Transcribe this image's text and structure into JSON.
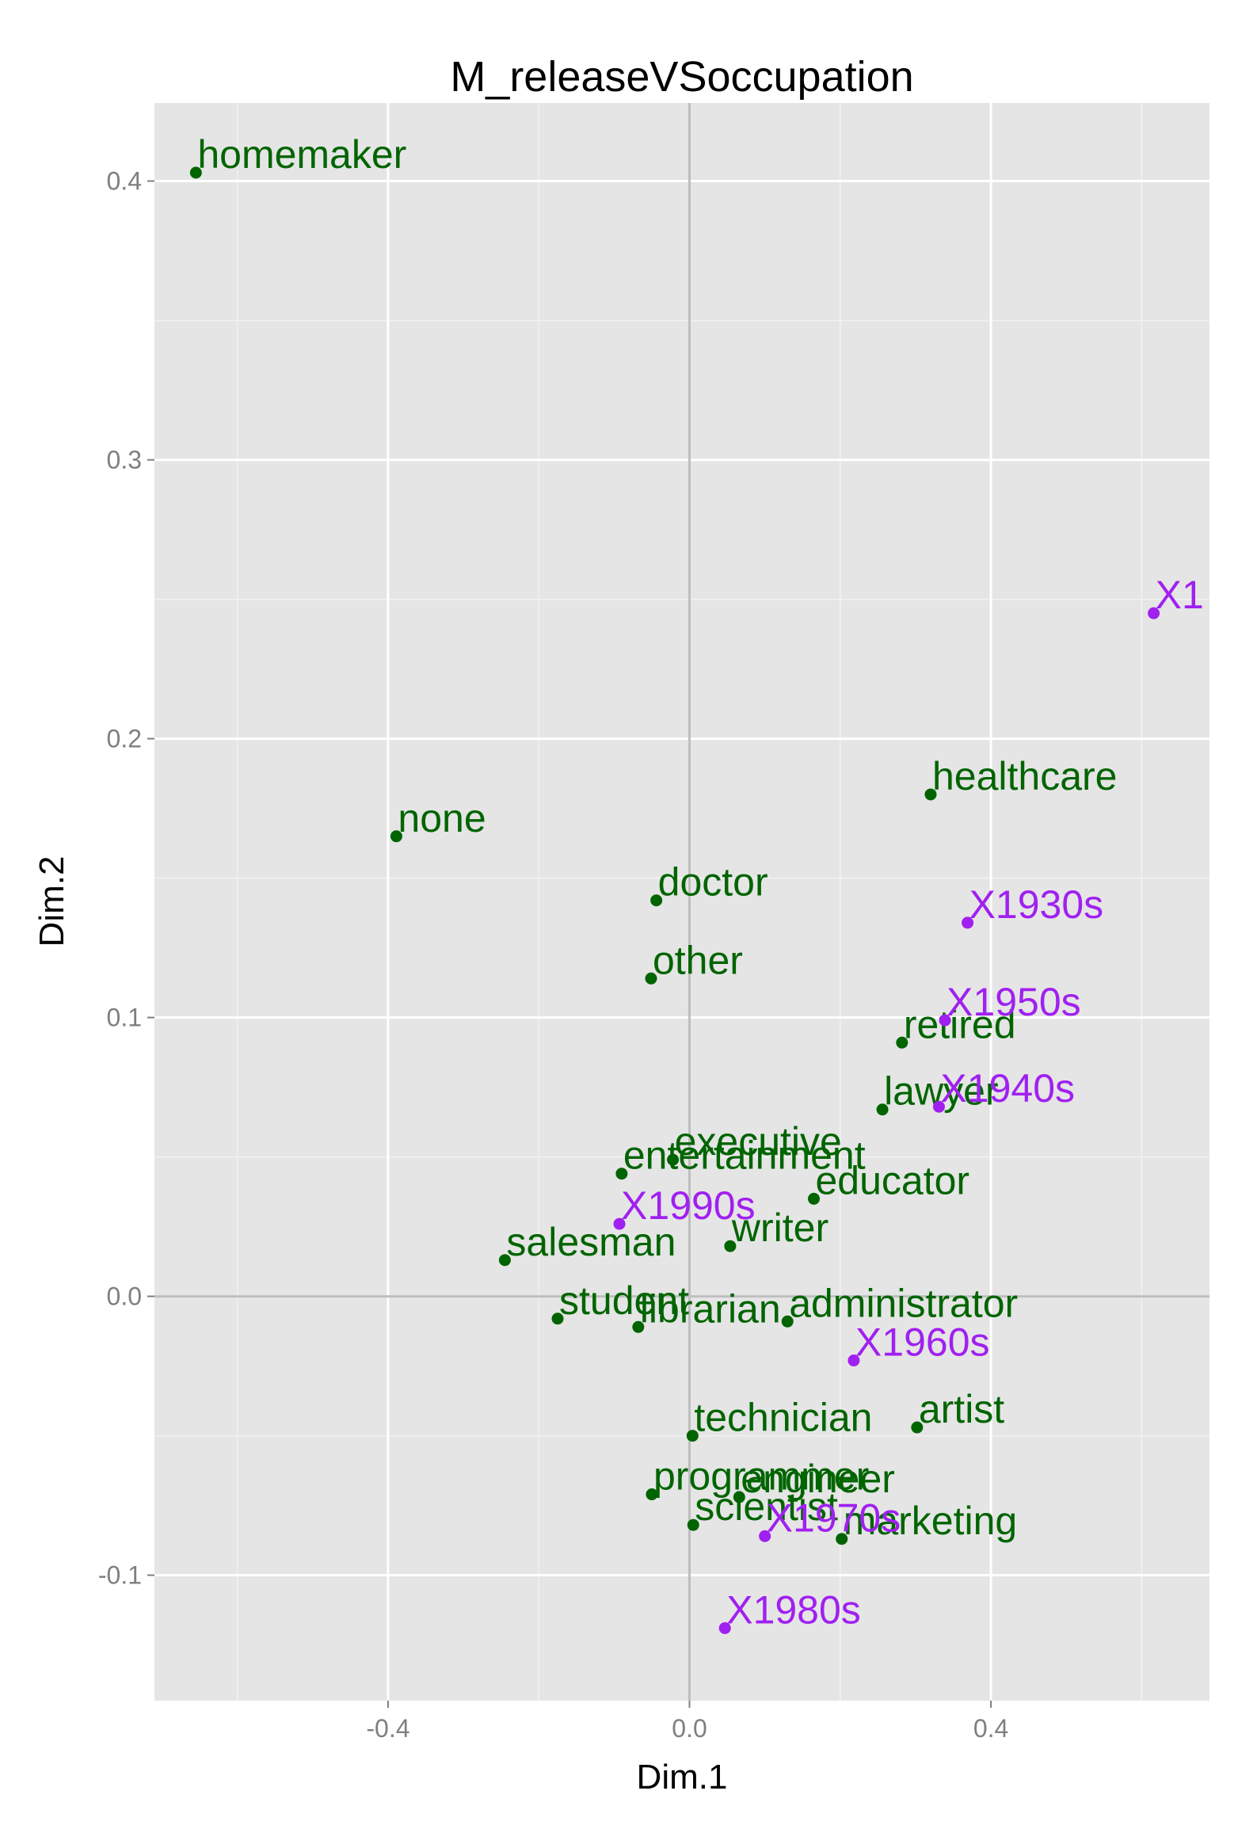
{
  "chart_data": {
    "type": "scatter",
    "title": "M_releaseVSoccupation",
    "xlabel": "Dim.1",
    "ylabel": "Dim.2",
    "xlim": [
      -0.71,
      0.69
    ],
    "ylim": [
      -0.145,
      0.428
    ],
    "x_ticks": [
      "-0.4",
      "0.0",
      "0.4"
    ],
    "x_tick_values": [
      -0.4,
      0.0,
      0.4
    ],
    "y_ticks": [
      "-0.1",
      "0.0",
      "0.1",
      "0.2",
      "0.3",
      "0.4"
    ],
    "y_tick_values": [
      -0.1,
      0.0,
      0.1,
      0.2,
      0.3,
      0.4
    ],
    "grid": true,
    "reference_lines": {
      "x": 0,
      "y": 0
    },
    "background_color": "#e5e5e5",
    "series": [
      {
        "color": "#006400",
        "points": [
          {
            "label": "homemaker",
            "x": -0.655,
            "y": 0.403
          },
          {
            "label": "none",
            "x": -0.389,
            "y": 0.165
          },
          {
            "label": "healthcare",
            "x": 0.32,
            "y": 0.18
          },
          {
            "label": "doctor",
            "x": -0.044,
            "y": 0.142
          },
          {
            "label": "other",
            "x": -0.051,
            "y": 0.114
          },
          {
            "label": "retired",
            "x": 0.282,
            "y": 0.091
          },
          {
            "label": "lawyer",
            "x": 0.256,
            "y": 0.067
          },
          {
            "label": "executive",
            "x": -0.022,
            "y": 0.049
          },
          {
            "label": "entertainment",
            "x": -0.09,
            "y": 0.044
          },
          {
            "label": "educator",
            "x": 0.165,
            "y": 0.035
          },
          {
            "label": "writer",
            "x": 0.054,
            "y": 0.018
          },
          {
            "label": "salesman",
            "x": -0.245,
            "y": 0.013
          },
          {
            "label": "student",
            "x": -0.175,
            "y": -0.008
          },
          {
            "label": "librarian",
            "x": -0.068,
            "y": -0.011
          },
          {
            "label": "administrator",
            "x": 0.13,
            "y": -0.009
          },
          {
            "label": "technician",
            "x": 0.004,
            "y": -0.05
          },
          {
            "label": "artist",
            "x": 0.302,
            "y": -0.047
          },
          {
            "label": "programmer",
            "x": -0.05,
            "y": -0.071
          },
          {
            "label": "engineer",
            "x": 0.066,
            "y": -0.072
          },
          {
            "label": "scientist",
            "x": 0.005,
            "y": -0.082
          },
          {
            "label": "marketing",
            "x": 0.202,
            "y": -0.087
          }
        ]
      },
      {
        "color": "#a020f0",
        "points": [
          {
            "label": "X1",
            "x": 0.616,
            "y": 0.245
          },
          {
            "label": "X1930s",
            "x": 0.369,
            "y": 0.134
          },
          {
            "label": "X1950s",
            "x": 0.339,
            "y": 0.099
          },
          {
            "label": "X1940s",
            "x": 0.331,
            "y": 0.068
          },
          {
            "label": "X1990s",
            "x": -0.093,
            "y": 0.026
          },
          {
            "label": "X1960s",
            "x": 0.218,
            "y": -0.023
          },
          {
            "label": "X1970s",
            "x": 0.1,
            "y": -0.086
          },
          {
            "label": "X1980s",
            "x": 0.047,
            "y": -0.119
          }
        ]
      }
    ]
  }
}
